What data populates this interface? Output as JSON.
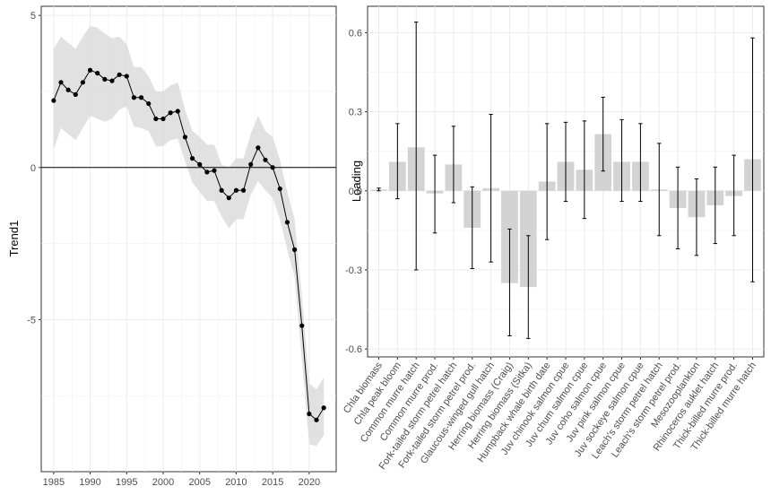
{
  "chart_data": [
    {
      "type": "line",
      "title": "",
      "xlabel": "",
      "ylabel": "Trend1",
      "xlim": [
        1983.3,
        2023.7
      ],
      "ylim": [
        -10.0,
        5.3
      ],
      "xticks": [
        1985,
        1990,
        1995,
        2000,
        2005,
        2010,
        2015,
        2020
      ],
      "yticks": [
        -5,
        0,
        5
      ],
      "reference_line_y": 0,
      "grid": true,
      "series": [
        {
          "name": "Trend1",
          "x": [
            1985,
            1986,
            1987,
            1988,
            1989,
            1990,
            1991,
            1992,
            1993,
            1994,
            1995,
            1996,
            1997,
            1998,
            1999,
            2000,
            2001,
            2002,
            2003,
            2004,
            2005,
            2006,
            2007,
            2008,
            2009,
            2010,
            2011,
            2012,
            2013,
            2014,
            2015,
            2016,
            2017,
            2018,
            2019,
            2020,
            2021,
            2022
          ],
          "y": [
            2.2,
            2.8,
            2.55,
            2.4,
            2.8,
            3.2,
            3.1,
            2.9,
            2.85,
            3.05,
            3.0,
            2.3,
            2.3,
            2.1,
            1.6,
            1.6,
            1.8,
            1.85,
            1.0,
            0.3,
            0.1,
            -0.15,
            -0.1,
            -0.75,
            -1.0,
            -0.75,
            -0.75,
            0.1,
            0.65,
            0.25,
            0.0,
            -0.7,
            -1.8,
            -2.7,
            -5.2,
            -8.1,
            -8.3,
            -7.9
          ],
          "lower": [
            0.6,
            1.3,
            1.1,
            0.9,
            1.3,
            1.7,
            1.6,
            1.5,
            1.6,
            1.9,
            2.0,
            1.35,
            1.3,
            1.2,
            0.7,
            0.7,
            0.9,
            0.95,
            0.2,
            -0.5,
            -0.8,
            -1.1,
            -1.1,
            -1.6,
            -2.0,
            -1.7,
            -1.7,
            -0.9,
            -0.45,
            -0.75,
            -1.0,
            -1.7,
            -2.7,
            -3.6,
            -6.3,
            -9.1,
            -9.15,
            -8.8
          ],
          "upper": [
            3.9,
            4.3,
            4.1,
            3.9,
            4.3,
            4.65,
            4.6,
            4.4,
            4.25,
            4.3,
            4.05,
            3.3,
            3.3,
            3.0,
            2.5,
            2.5,
            2.7,
            2.8,
            1.9,
            1.2,
            1.0,
            0.75,
            0.75,
            0.1,
            0.0,
            0.3,
            0.3,
            1.1,
            1.7,
            1.2,
            1.0,
            0.25,
            -0.8,
            -1.7,
            -4.2,
            -7.1,
            -7.3,
            -6.9
          ]
        }
      ]
    },
    {
      "type": "bar",
      "title": "",
      "xlabel": "",
      "ylabel": "Loading",
      "ylim": [
        -0.63,
        0.7
      ],
      "yticks": [
        -0.6,
        -0.3,
        0.0,
        0.3,
        0.6
      ],
      "ytick_labels": [
        "-0.6",
        "-0.3",
        "0.0",
        "0.3",
        "0.6"
      ],
      "grid": true,
      "categories": [
        "Chla biomass",
        "Chla peak bloom",
        "Common murre hatch",
        "Common murre prod.",
        "Fork-tailed storm petrel hatch",
        "Fork-tailed storm petrel prod.",
        "Glaucous-winged gull hatch",
        "Herring biomass (Craig)",
        "Herring biomass (Sitka)",
        "Humpback whale birth date",
        "Juv chinook salmon cpue",
        "Juv chum salmon cpue",
        "Juv coho salmon cpue",
        "Juv pink salmon cpue",
        "Juv sockeye salmon cpue",
        "Leach's storm petrel hatch",
        "Leach's storm petrel prod.",
        "Mesozooplankton",
        "Rhinoceros auklet hatch",
        "Thick-billed murre prod.",
        "Thick-billed murre hatch"
      ],
      "values": [
        0.005,
        0.11,
        0.165,
        -0.01,
        0.1,
        -0.14,
        0.01,
        -0.35,
        -0.365,
        0.035,
        0.11,
        0.08,
        0.215,
        0.11,
        0.11,
        0.005,
        -0.065,
        -0.1,
        -0.055,
        -0.02,
        0.12
      ],
      "error_lower": [
        0.0,
        -0.03,
        -0.3,
        -0.16,
        -0.045,
        -0.295,
        -0.27,
        -0.55,
        -0.56,
        -0.185,
        -0.04,
        -0.105,
        0.075,
        -0.04,
        -0.04,
        -0.17,
        -0.22,
        -0.245,
        -0.2,
        -0.17,
        -0.345
      ],
      "error_upper": [
        0.01,
        0.255,
        0.64,
        0.135,
        0.245,
        0.015,
        0.29,
        -0.145,
        -0.17,
        0.255,
        0.26,
        0.265,
        0.355,
        0.27,
        0.255,
        0.18,
        0.09,
        0.045,
        0.09,
        0.135,
        0.58
      ]
    }
  ]
}
